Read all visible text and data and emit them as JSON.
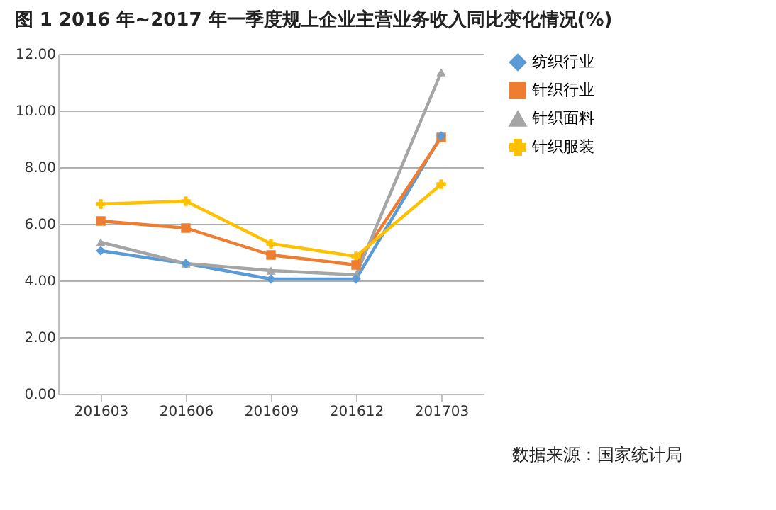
{
  "chart_data": {
    "type": "line",
    "title": "图 1 2016 年~2017 年一季度规上企业主营业务收入同比变化情况(%)",
    "categories": [
      "201603",
      "201606",
      "201609",
      "201612",
      "201703"
    ],
    "series": [
      {
        "name": "纺织行业",
        "color": "#5b9bd5",
        "marker": "diamond",
        "values": [
          5.05,
          4.6,
          4.05,
          4.05,
          9.1
        ]
      },
      {
        "name": "针织行业",
        "color": "#ed7d31",
        "marker": "square",
        "values": [
          6.1,
          5.85,
          4.9,
          4.55,
          9.05
        ]
      },
      {
        "name": "针织面料",
        "color": "#a5a5a5",
        "marker": "triangle",
        "values": [
          5.35,
          4.6,
          4.35,
          4.2,
          11.35
        ]
      },
      {
        "name": "针织服装",
        "color": "#ffc000",
        "marker": "cross",
        "values": [
          6.7,
          6.8,
          5.3,
          4.85,
          7.4
        ]
      }
    ],
    "ylim": [
      0,
      12
    ],
    "yticks": [
      {
        "value": 0,
        "label": "0.00"
      },
      {
        "value": 2,
        "label": "2.00"
      },
      {
        "value": 4,
        "label": "4.00"
      },
      {
        "value": 6,
        "label": "6.00"
      },
      {
        "value": 8,
        "label": "8.00"
      },
      {
        "value": 10,
        "label": "10.00"
      },
      {
        "value": 12,
        "label": "12.00"
      }
    ],
    "grid": "y",
    "legend": "right",
    "line_style": "solid",
    "annotations": [
      "数据来源：国家统计局"
    ]
  }
}
